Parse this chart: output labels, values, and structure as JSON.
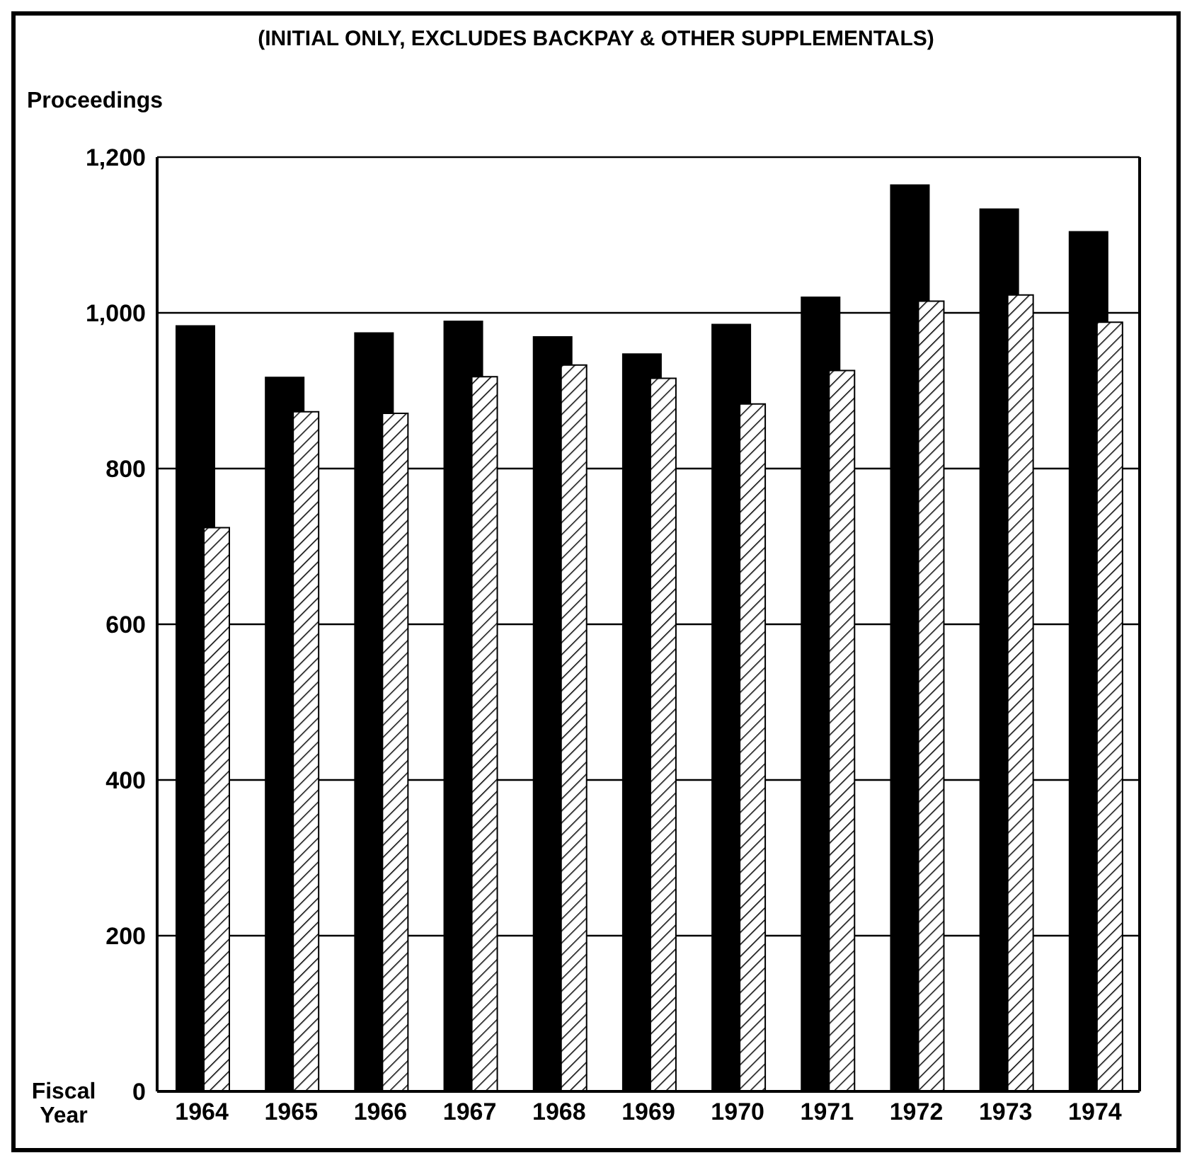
{
  "chart_data": {
    "type": "bar",
    "title": "(INITIAL ONLY, EXCLUDES BACKPAY & OTHER SUPPLEMENTALS)",
    "ylabel": "Proceedings",
    "xlabel": "Fiscal Year",
    "categories": [
      "1964",
      "1965",
      "1966",
      "1967",
      "1968",
      "1969",
      "1970",
      "1971",
      "1972",
      "1973",
      "1974"
    ],
    "series": [
      {
        "color": "#000000",
        "values": [
          984,
          918,
          975,
          990,
          970,
          948,
          986,
          1021,
          1165,
          1134,
          1105
        ]
      },
      {
        "color": "#000000",
        "values": [
          724,
          873,
          871,
          918,
          933,
          916,
          883,
          926,
          1015,
          1023,
          988
        ]
      }
    ],
    "ylim": [
      0,
      1200
    ],
    "yticks": [
      0,
      200,
      400,
      600,
      800,
      {
        "value": 1000,
        "label": "1,000"
      },
      {
        "value": 1200,
        "label": "1,200"
      }
    ],
    "grid": "y"
  }
}
